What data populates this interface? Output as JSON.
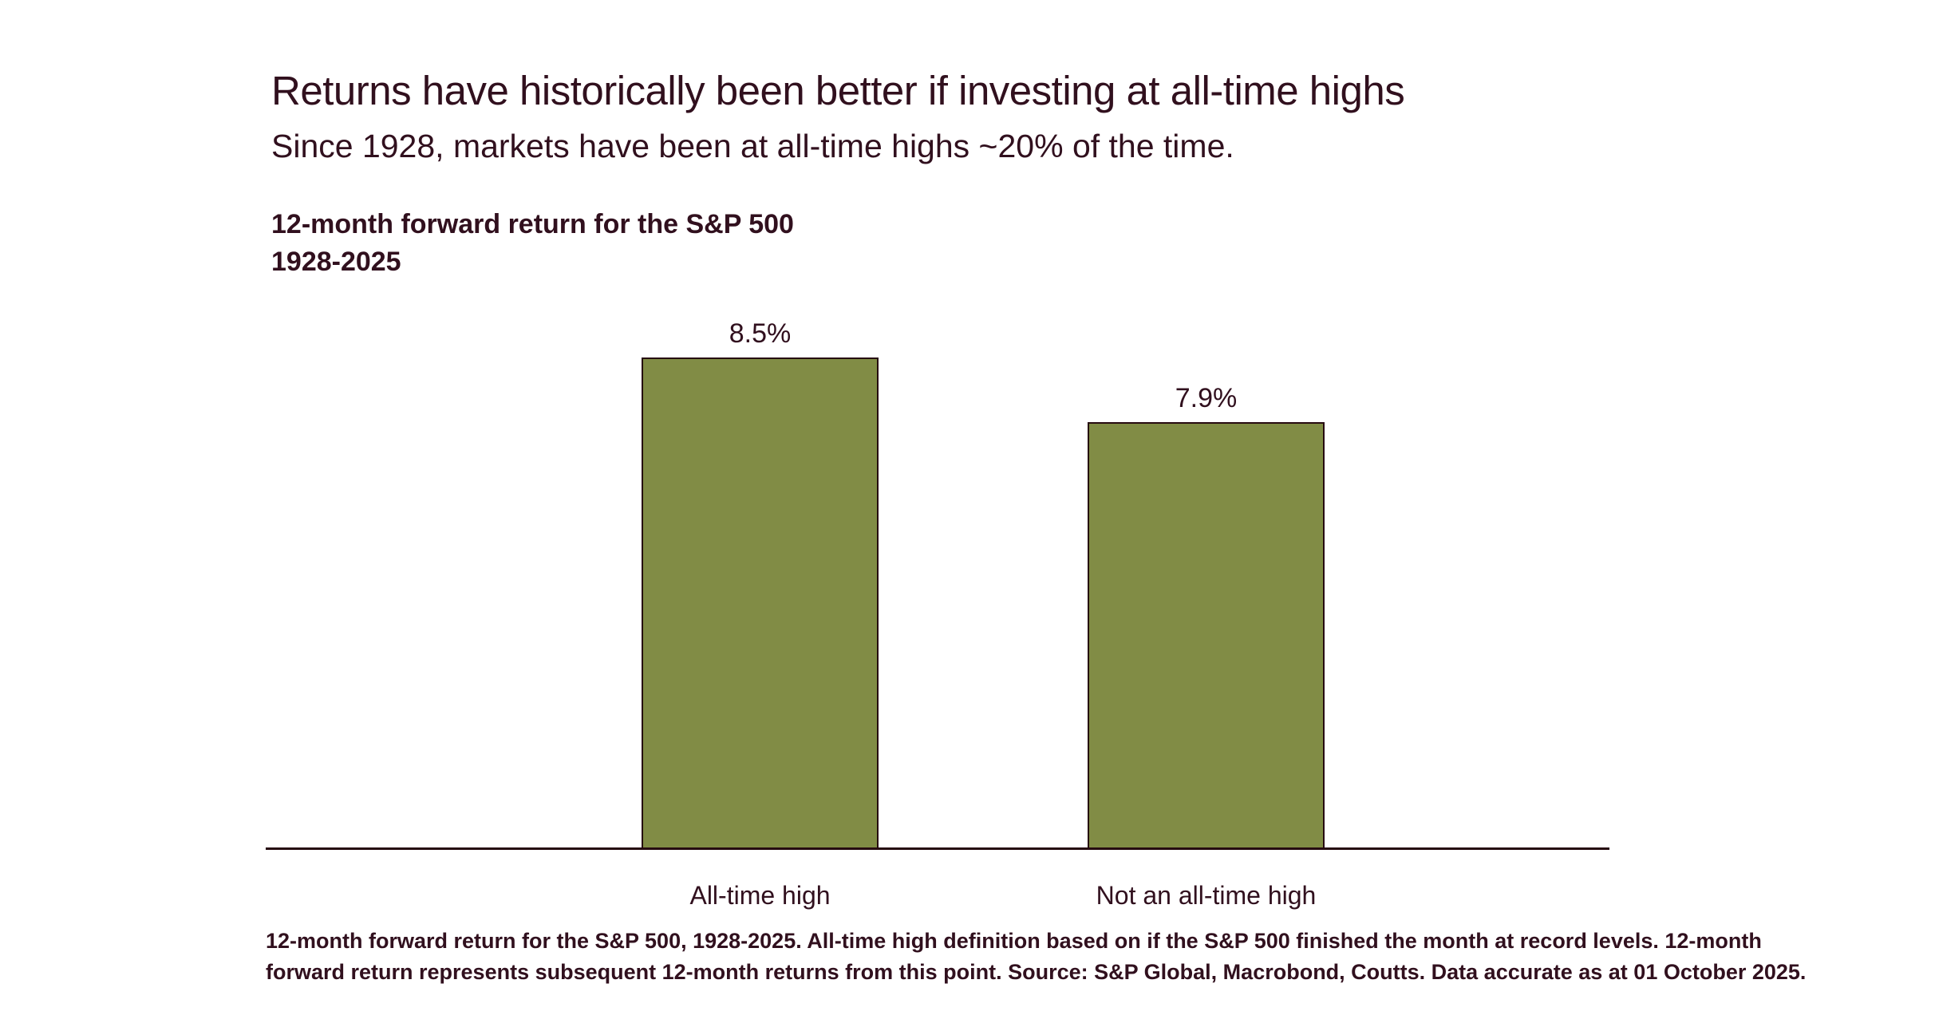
{
  "page": {
    "title": "Returns have historically been better if investing at all-time highs",
    "subtitle": "Since 1928, markets have been at all-time highs ~20% of the time."
  },
  "chart_data": {
    "type": "bar",
    "title": "12-month forward return for the S&P 500",
    "period": "1928-2025",
    "categories": [
      "All-time high",
      "Not an all-time high"
    ],
    "values": [
      8.5,
      7.9
    ],
    "value_labels": [
      "8.5%",
      "7.9%"
    ],
    "unit": "%",
    "xlabel": "",
    "ylabel": "",
    "y_axis_visible": false,
    "grid": false,
    "legend": false,
    "bar_color": "#818C45",
    "bar_border_color": "#260A10",
    "axis_color": "#260A10",
    "text_color": "#31101E"
  },
  "footnote": {
    "lines": [
      "12-month forward return for the S&P 500, 1928-2025. All-time high definition based on if the S&P 500 finished the month at record levels. 12-month",
      "forward return represents subsequent 12-month returns from this point. Source: S&P Global, Macrobond, Coutts. Data accurate as at 01 October 2025."
    ],
    "text": "12-month forward return for the S&P 500, 1928-2025. All-time high definition based on if the S&P 500 finished the month at record levels. 12-month forward return represents subsequent 12-month returns from this point. Source: S&P Global, Macrobond, Coutts. Data accurate as at 01 October 2025."
  }
}
